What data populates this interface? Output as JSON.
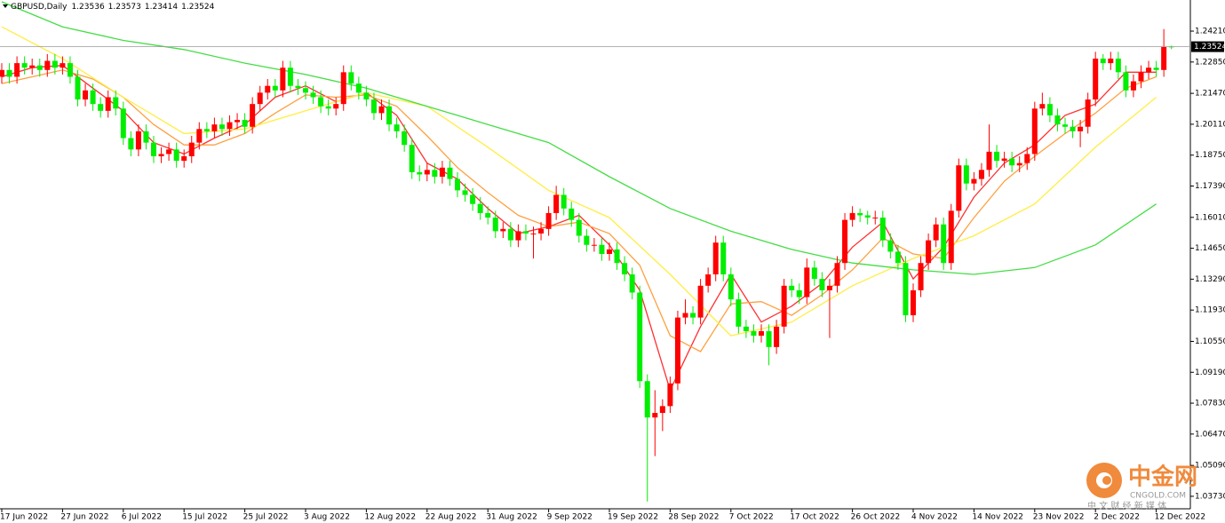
{
  "chart_data": {
    "type": "candlestick",
    "title": "GBPUSD,Daily",
    "up_color": "#ff0000",
    "down_color": "#00ee00",
    "open": [
      1.222,
      1.225,
      1.222,
      1.228,
      1.226,
      1.227,
      1.225,
      1.229,
      1.226,
      1.228,
      1.222,
      1.212,
      1.216,
      1.21,
      1.207,
      1.213,
      1.208,
      1.195,
      1.19,
      1.198,
      1.193,
      1.187,
      1.188,
      1.19,
      1.185,
      1.187,
      1.193,
      1.199,
      1.198,
      1.201,
      1.199,
      1.202,
      1.203,
      1.2,
      1.21,
      1.215,
      1.218,
      1.216,
      1.226,
      1.218,
      1.217,
      1.215,
      1.213,
      1.209,
      1.208,
      1.21,
      1.224,
      1.219,
      1.215,
      1.212,
      1.206,
      1.209,
      1.201,
      1.198,
      1.192,
      1.18,
      1.179,
      1.181,
      1.178,
      1.182,
      1.177,
      1.172,
      1.17,
      1.166,
      1.162,
      1.16,
      1.154,
      1.155,
      1.15,
      1.154,
      1.153,
      1.153,
      1.155,
      1.162,
      1.17,
      1.164,
      1.159,
      1.152,
      1.148,
      1.148,
      1.144,
      1.146,
      1.14,
      1.135,
      1.127,
      1.088,
      1.072,
      1.074,
      1.077,
      1.087,
      1.116,
      1.118,
      1.116,
      1.13,
      1.135,
      1.149,
      1.135,
      1.124,
      1.112,
      1.11,
      1.108,
      1.11,
      1.103,
      1.112,
      1.13,
      1.128,
      1.125,
      1.138,
      1.133,
      1.128,
      1.13,
      1.14,
      1.159,
      1.162,
      1.161,
      1.16,
      1.16,
      1.15,
      1.145,
      1.14,
      1.117,
      1.128,
      1.14,
      1.15,
      1.157,
      1.14,
      1.163,
      1.183,
      1.175,
      1.177,
      1.181,
      1.189,
      1.185,
      1.186,
      1.183,
      1.184,
      1.188,
      1.208,
      1.21,
      1.205,
      1.201,
      1.2,
      1.198,
      1.2,
      1.212,
      1.23,
      1.228,
      1.23,
      1.224,
      1.216,
      1.22,
      1.224,
      1.226,
      1.225,
      1.23536
    ],
    "high": [
      1.228,
      1.228,
      1.231,
      1.231,
      1.23,
      1.23,
      1.232,
      1.232,
      1.231,
      1.231,
      1.225,
      1.219,
      1.219,
      1.213,
      1.216,
      1.216,
      1.211,
      1.198,
      1.201,
      1.201,
      1.196,
      1.191,
      1.193,
      1.193,
      1.19,
      1.196,
      1.202,
      1.202,
      1.204,
      1.204,
      1.205,
      1.206,
      1.206,
      1.213,
      1.218,
      1.221,
      1.221,
      1.229,
      1.229,
      1.221,
      1.22,
      1.218,
      1.216,
      1.212,
      1.213,
      1.227,
      1.227,
      1.222,
      1.218,
      1.215,
      1.212,
      1.212,
      1.204,
      1.201,
      1.195,
      1.183,
      1.184,
      1.184,
      1.185,
      1.185,
      1.18,
      1.175,
      1.173,
      1.169,
      1.165,
      1.163,
      1.158,
      1.158,
      1.157,
      1.157,
      1.156,
      1.158,
      1.165,
      1.174,
      1.173,
      1.167,
      1.162,
      1.155,
      1.151,
      1.151,
      1.149,
      1.149,
      1.143,
      1.138,
      1.13,
      1.091,
      1.084,
      1.08,
      1.09,
      1.119,
      1.124,
      1.121,
      1.133,
      1.138,
      1.152,
      1.152,
      1.138,
      1.127,
      1.115,
      1.113,
      1.113,
      1.113,
      1.115,
      1.133,
      1.133,
      1.131,
      1.142,
      1.141,
      1.136,
      1.133,
      1.143,
      1.162,
      1.165,
      1.164,
      1.163,
      1.163,
      1.163,
      1.153,
      1.148,
      1.143,
      1.131,
      1.143,
      1.153,
      1.16,
      1.16,
      1.166,
      1.186,
      1.186,
      1.18,
      1.184,
      1.201,
      1.192,
      1.189,
      1.189,
      1.187,
      1.191,
      1.211,
      1.215,
      1.213,
      1.208,
      1.204,
      1.203,
      1.203,
      1.215,
      1.233,
      1.232,
      1.233,
      1.233,
      1.227,
      1.223,
      1.227,
      1.229,
      1.229,
      1.243,
      1.23573
    ],
    "low": [
      1.219,
      1.219,
      1.219,
      1.223,
      1.223,
      1.222,
      1.222,
      1.223,
      1.223,
      1.219,
      1.209,
      1.209,
      1.207,
      1.204,
      1.204,
      1.205,
      1.192,
      1.187,
      1.187,
      1.19,
      1.184,
      1.184,
      1.185,
      1.182,
      1.182,
      1.184,
      1.19,
      1.195,
      1.195,
      1.196,
      1.196,
      1.199,
      1.197,
      1.197,
      1.207,
      1.212,
      1.213,
      1.213,
      1.215,
      1.214,
      1.212,
      1.21,
      1.206,
      1.205,
      1.205,
      1.207,
      1.216,
      1.212,
      1.209,
      1.203,
      1.203,
      1.198,
      1.195,
      1.189,
      1.177,
      1.176,
      1.176,
      1.175,
      1.175,
      1.174,
      1.169,
      1.167,
      1.163,
      1.159,
      1.157,
      1.151,
      1.151,
      1.147,
      1.147,
      1.15,
      1.142,
      1.15,
      1.152,
      1.159,
      1.161,
      1.156,
      1.149,
      1.145,
      1.145,
      1.141,
      1.141,
      1.137,
      1.132,
      1.124,
      1.085,
      1.035,
      1.055,
      1.066,
      1.074,
      1.084,
      1.113,
      1.113,
      1.113,
      1.127,
      1.132,
      1.132,
      1.121,
      1.109,
      1.107,
      1.105,
      1.105,
      1.095,
      1.1,
      1.109,
      1.125,
      1.122,
      1.122,
      1.13,
      1.125,
      1.107,
      1.127,
      1.137,
      1.156,
      1.158,
      1.157,
      1.157,
      1.147,
      1.142,
      1.137,
      1.114,
      1.114,
      1.125,
      1.137,
      1.147,
      1.137,
      1.137,
      1.16,
      1.172,
      1.172,
      1.174,
      1.178,
      1.182,
      1.182,
      1.18,
      1.18,
      1.181,
      1.185,
      1.205,
      1.202,
      1.198,
      1.197,
      1.195,
      1.191,
      1.197,
      1.209,
      1.225,
      1.225,
      1.221,
      1.213,
      1.213,
      1.217,
      1.221,
      1.222,
      1.222,
      1.23414
    ],
    "close": [
      1.225,
      1.222,
      1.228,
      1.226,
      1.227,
      1.225,
      1.229,
      1.226,
      1.228,
      1.222,
      1.212,
      1.216,
      1.21,
      1.207,
      1.213,
      1.208,
      1.195,
      1.19,
      1.198,
      1.193,
      1.187,
      1.188,
      1.19,
      1.185,
      1.187,
      1.193,
      1.199,
      1.198,
      1.201,
      1.199,
      1.202,
      1.203,
      1.2,
      1.21,
      1.215,
      1.218,
      1.216,
      1.226,
      1.218,
      1.217,
      1.215,
      1.213,
      1.209,
      1.208,
      1.21,
      1.224,
      1.219,
      1.215,
      1.212,
      1.206,
      1.209,
      1.201,
      1.198,
      1.192,
      1.18,
      1.179,
      1.181,
      1.178,
      1.182,
      1.177,
      1.172,
      1.17,
      1.166,
      1.162,
      1.16,
      1.154,
      1.155,
      1.15,
      1.154,
      1.153,
      1.153,
      1.155,
      1.162,
      1.17,
      1.164,
      1.159,
      1.152,
      1.148,
      1.148,
      1.144,
      1.146,
      1.14,
      1.135,
      1.127,
      1.088,
      1.072,
      1.074,
      1.077,
      1.087,
      1.116,
      1.118,
      1.116,
      1.13,
      1.135,
      1.149,
      1.135,
      1.124,
      1.112,
      1.11,
      1.108,
      1.11,
      1.103,
      1.112,
      1.13,
      1.128,
      1.125,
      1.138,
      1.133,
      1.128,
      1.13,
      1.14,
      1.159,
      1.162,
      1.161,
      1.16,
      1.16,
      1.15,
      1.145,
      1.14,
      1.117,
      1.128,
      1.14,
      1.15,
      1.157,
      1.14,
      1.163,
      1.183,
      1.175,
      1.177,
      1.181,
      1.189,
      1.185,
      1.186,
      1.183,
      1.184,
      1.188,
      1.208,
      1.21,
      1.205,
      1.201,
      1.2,
      1.198,
      1.2,
      1.212,
      1.23,
      1.228,
      1.23,
      1.224,
      1.216,
      1.22,
      1.224,
      1.226,
      1.225,
      1.2353,
      1.23524
    ],
    "lines": [
      {
        "color": "#ff3030",
        "x": [
          0,
          4,
          8,
          12,
          16,
          20,
          24,
          28,
          32,
          36,
          40,
          44,
          48,
          52,
          56,
          60,
          64,
          68,
          72,
          76,
          80,
          84,
          88,
          92,
          96,
          100,
          104,
          108,
          112,
          116,
          120,
          124,
          128,
          132,
          136,
          140,
          144,
          148,
          152
        ],
        "values": [
          1.222,
          1.226,
          1.227,
          1.217,
          1.207,
          1.193,
          1.188,
          1.195,
          1.201,
          1.213,
          1.218,
          1.211,
          1.215,
          1.205,
          1.184,
          1.177,
          1.164,
          1.153,
          1.156,
          1.161,
          1.148,
          1.128,
          1.084,
          1.112,
          1.135,
          1.114,
          1.121,
          1.131,
          1.147,
          1.158,
          1.133,
          1.147,
          1.169,
          1.184,
          1.192,
          1.205,
          1.21,
          1.224,
          1.224
        ]
      },
      {
        "color": "#ffa040",
        "x": [
          0,
          4,
          8,
          12,
          16,
          20,
          24,
          28,
          32,
          36,
          40,
          44,
          48,
          52,
          56,
          60,
          64,
          68,
          72,
          76,
          80,
          84,
          88,
          92,
          96,
          100,
          104,
          108,
          112,
          116,
          120,
          124,
          128,
          132,
          136,
          140,
          144,
          148,
          152
        ],
        "values": [
          1.219,
          1.222,
          1.225,
          1.221,
          1.213,
          1.201,
          1.192,
          1.192,
          1.197,
          1.206,
          1.214,
          1.213,
          1.214,
          1.209,
          1.196,
          1.182,
          1.171,
          1.161,
          1.156,
          1.158,
          1.153,
          1.139,
          1.108,
          1.101,
          1.122,
          1.123,
          1.117,
          1.126,
          1.137,
          1.151,
          1.144,
          1.142,
          1.16,
          1.176,
          1.187,
          1.197,
          1.206,
          1.217,
          1.222
        ]
      },
      {
        "color": "#ffee44",
        "x": [
          0,
          8,
          16,
          24,
          32,
          40,
          48,
          56,
          64,
          72,
          80,
          88,
          96,
          104,
          112,
          120,
          128,
          136,
          144,
          152
        ],
        "values": [
          1.244,
          1.23,
          1.213,
          1.197,
          1.199,
          1.207,
          1.215,
          1.209,
          1.191,
          1.172,
          1.16,
          1.135,
          1.108,
          1.114,
          1.13,
          1.142,
          1.152,
          1.166,
          1.191,
          1.213
        ]
      },
      {
        "color": "#44dd44",
        "x": [
          0,
          8,
          16,
          24,
          32,
          40,
          48,
          56,
          64,
          72,
          80,
          88,
          96,
          104,
          112,
          120,
          128,
          136,
          144,
          152
        ],
        "values": [
          1.255,
          1.244,
          1.238,
          1.234,
          1.228,
          1.223,
          1.217,
          1.209,
          1.201,
          1.193,
          1.178,
          1.164,
          1.154,
          1.146,
          1.14,
          1.137,
          1.135,
          1.138,
          1.148,
          1.166
        ]
      }
    ],
    "ylim": [
      1.0318,
      1.2558
    ],
    "yticks": [
      {
        "value": 1.2421,
        "label": "1.24210"
      },
      {
        "value": 1.2285,
        "label": "1.22850"
      },
      {
        "value": 1.2147,
        "label": "1.21470"
      },
      {
        "value": 1.2011,
        "label": "1.20110"
      },
      {
        "value": 1.1875,
        "label": "1.18750"
      },
      {
        "value": 1.1739,
        "label": "1.17390"
      },
      {
        "value": 1.1601,
        "label": "1.16010"
      },
      {
        "value": 1.1465,
        "label": "1.14650"
      },
      {
        "value": 1.1329,
        "label": "1.13290"
      },
      {
        "value": 1.1193,
        "label": "1.11930"
      },
      {
        "value": 1.1055,
        "label": "1.10550"
      },
      {
        "value": 1.0919,
        "label": "1.09190"
      },
      {
        "value": 1.0783,
        "label": "1.07830"
      },
      {
        "value": 1.0647,
        "label": "1.06470"
      },
      {
        "value": 1.0509,
        "label": "1.05090"
      },
      {
        "value": 1.0373,
        "label": "1.03730"
      }
    ],
    "xticks": [
      {
        "value": 0,
        "label": "17 Jun 2022"
      },
      {
        "value": 8,
        "label": "27 Jun 2022"
      },
      {
        "value": 16,
        "label": "6 Jul 2022"
      },
      {
        "value": 24,
        "label": "15 Jul 2022"
      },
      {
        "value": 32,
        "label": "25 Jul 2022"
      },
      {
        "value": 40,
        "label": "3 Aug 2022"
      },
      {
        "value": 48,
        "label": "12 Aug 2022"
      },
      {
        "value": 56,
        "label": "22 Aug 2022"
      },
      {
        "value": 64,
        "label": "31 Aug 2022"
      },
      {
        "value": 72,
        "label": "9 Sep 2022"
      },
      {
        "value": 80,
        "label": "19 Sep 2022"
      },
      {
        "value": 88,
        "label": "28 Sep 2022"
      },
      {
        "value": 96,
        "label": "7 Oct 2022"
      },
      {
        "value": 104,
        "label": "17 Oct 2022"
      },
      {
        "value": 112,
        "label": "26 Oct 2022"
      },
      {
        "value": 120,
        "label": "4 Nov 2022"
      },
      {
        "value": 128,
        "label": "14 Nov 2022"
      },
      {
        "value": 136,
        "label": "23 Nov 2022"
      },
      {
        "value": 144,
        "label": "2 Dec 2022"
      },
      {
        "value": 152,
        "label": "12 Dec 2022"
      }
    ]
  },
  "watermark": {
    "name": "中金网",
    "domain": "CNGOLD.COM",
    "tagline": "中 文 财 经 新 媒 体"
  }
}
